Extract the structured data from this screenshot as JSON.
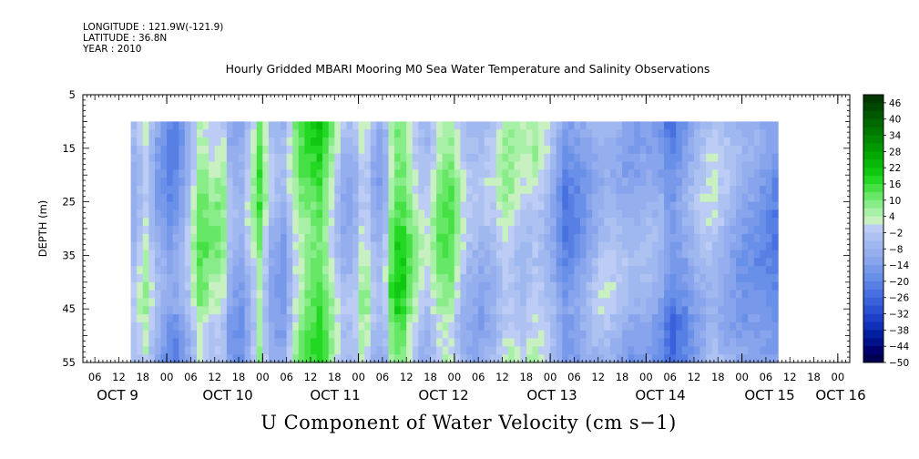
{
  "header": {
    "longitude": "LONGITUDE : 121.9W(-121.9)",
    "latitude": "LATITUDE : 36.8N",
    "year": "YEAR : 2010"
  },
  "chart_data": {
    "type": "heatmap",
    "title": "Hourly Gridded MBARI Mooring M0 Sea Water Temperature and Salinity Observations",
    "xlabel": "U Component of Water Velocity (cm s−1)",
    "ylabel": "DEPTH (m)",
    "ylim": [
      5,
      55
    ],
    "y_inverted": true,
    "xlim_hours": [
      3,
      195
    ],
    "y_ticks": [
      5,
      15,
      25,
      35,
      45,
      55
    ],
    "x_hour_labels": [
      "06",
      "12",
      "18",
      "00",
      "06",
      "12",
      "18",
      "00",
      "06",
      "12",
      "18",
      "00",
      "06",
      "12",
      "18",
      "00",
      "06",
      "12",
      "18",
      "00",
      "06",
      "12",
      "18",
      "00",
      "06",
      "12",
      "18",
      "00",
      "06",
      "12",
      "18",
      "00"
    ],
    "day_labels": [
      "OCT  9",
      "OCT 10",
      "OCT 11",
      "OCT 12",
      "OCT 13",
      "OCT 14",
      "OCT 15",
      "OCT 16"
    ],
    "data_start": "2010-10-09 12:00",
    "data_end": "2010-10-16 06:00",
    "depth_range": [
      10,
      55
    ],
    "colorbar": {
      "labels": [
        "46",
        "40",
        "34",
        "28",
        "22",
        "16",
        "10",
        "4",
        "−2",
        "−8",
        "−14",
        "−20",
        "−26",
        "−32",
        "−38",
        "−44",
        "−50"
      ],
      "levels": [
        -50,
        -47,
        -44,
        -41,
        -38,
        -35,
        -32,
        -29,
        -26,
        -23,
        -20,
        -17,
        -14,
        -11,
        -8,
        -5,
        -2,
        1,
        4,
        7,
        10,
        13,
        16,
        19,
        22,
        25,
        28,
        31,
        34,
        37,
        40,
        43,
        46,
        49
      ],
      "colors": [
        "#000050",
        "#00006e",
        "#001088",
        "#0020a0",
        "#1030b8",
        "#1e40c8",
        "#2a50d4",
        "#3a60dc",
        "#4870e0",
        "#5880e4",
        "#6890e8",
        "#7898ea",
        "#88a4ec",
        "#94aeee",
        "#a0b8f0",
        "#aec2f2",
        "#bcccf4",
        "#c8f0c0",
        "#a8f0a8",
        "#88ec88",
        "#66e866",
        "#44e044",
        "#22d822",
        "#10c810",
        "#08b808",
        "#00a800",
        "#009800",
        "#008800",
        "#007800",
        "#006800",
        "#005800",
        "#004800",
        "#003800"
      ]
    },
    "time_profile": [
      {
        "day": 9.5,
        "v": -6
      },
      {
        "day": 9.62,
        "v": 3
      },
      {
        "day": 9.75,
        "v": -10
      },
      {
        "day": 9.9,
        "v": -18
      },
      {
        "day": 10.05,
        "v": -8
      },
      {
        "day": 10.2,
        "v": 10
      },
      {
        "day": 10.3,
        "v": 4
      },
      {
        "day": 10.42,
        "v": 6
      },
      {
        "day": 10.5,
        "v": -8
      },
      {
        "day": 10.62,
        "v": -12
      },
      {
        "day": 10.75,
        "v": 2
      },
      {
        "day": 10.8,
        "v": 12
      },
      {
        "day": 10.92,
        "v": -6
      },
      {
        "day": 11.05,
        "v": -12
      },
      {
        "day": 11.2,
        "v": 6
      },
      {
        "day": 11.3,
        "v": 12
      },
      {
        "day": 11.45,
        "v": 16
      },
      {
        "day": 11.55,
        "v": 6
      },
      {
        "day": 11.7,
        "v": -8
      },
      {
        "day": 11.8,
        "v": -6
      },
      {
        "day": 11.9,
        "v": 6
      },
      {
        "day": 12.0,
        "v": -6
      },
      {
        "day": 12.1,
        "v": -10
      },
      {
        "day": 12.2,
        "v": 12
      },
      {
        "day": 12.28,
        "v": 16
      },
      {
        "day": 12.4,
        "v": 6
      },
      {
        "day": 12.55,
        "v": -4
      },
      {
        "day": 12.7,
        "v": 8
      },
      {
        "day": 12.8,
        "v": 10
      },
      {
        "day": 12.95,
        "v": -4
      },
      {
        "day": 13.1,
        "v": -8
      },
      {
        "day": 13.25,
        "v": -4
      },
      {
        "day": 13.4,
        "v": 4
      },
      {
        "day": 13.55,
        "v": -2
      },
      {
        "day": 13.7,
        "v": 2
      },
      {
        "day": 13.85,
        "v": -6
      },
      {
        "day": 14.0,
        "v": -18
      },
      {
        "day": 14.15,
        "v": -14
      },
      {
        "day": 14.25,
        "v": -10
      },
      {
        "day": 14.4,
        "v": -4
      },
      {
        "day": 14.55,
        "v": -6
      },
      {
        "day": 14.7,
        "v": -10
      },
      {
        "day": 14.85,
        "v": -8
      },
      {
        "day": 15.0,
        "v": -12
      },
      {
        "day": 15.1,
        "v": -20
      },
      {
        "day": 15.25,
        "v": -14
      },
      {
        "day": 15.4,
        "v": -6
      },
      {
        "day": 15.55,
        "v": -2
      },
      {
        "day": 15.7,
        "v": -8
      },
      {
        "day": 15.85,
        "v": -12
      },
      {
        "day": 16.0,
        "v": -14
      },
      {
        "day": 16.2,
        "v": -18
      }
    ]
  }
}
